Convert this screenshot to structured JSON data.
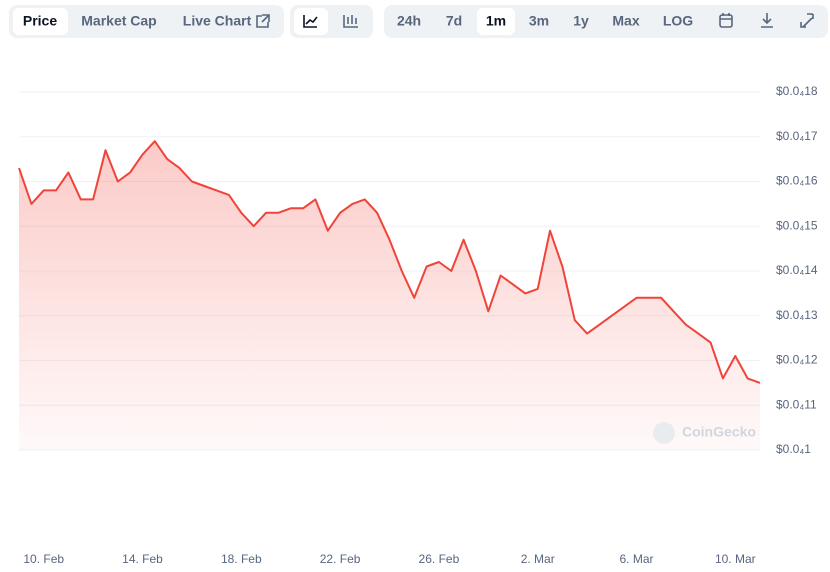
{
  "toolbar": {
    "tabs": [
      "Price",
      "Market Cap",
      "Live Chart"
    ],
    "ranges": [
      "24h",
      "7d",
      "1m",
      "3m",
      "1y",
      "Max",
      "LOG"
    ]
  },
  "chart_data": {
    "type": "line",
    "watermark": "CoinGecko",
    "color": "#f0443a",
    "grid": true,
    "categories": [
      null,
      null,
      "10. Feb",
      null,
      null,
      null,
      null,
      null,
      null,
      null,
      "14. Feb",
      null,
      null,
      null,
      null,
      null,
      null,
      null,
      "18. Feb",
      null,
      null,
      null,
      null,
      null,
      null,
      null,
      "22. Feb",
      null,
      null,
      null,
      null,
      null,
      null,
      null,
      "26. Feb",
      null,
      null,
      null,
      null,
      null,
      null,
      null,
      "2. Mar",
      null,
      null,
      null,
      null,
      null,
      null,
      null,
      "6. Mar",
      null,
      null,
      null,
      null,
      null,
      null,
      null,
      "10. Mar",
      null,
      null
    ],
    "values": [
      1.63e-05,
      1.55e-05,
      1.58e-05,
      1.58e-05,
      1.62e-05,
      1.56e-05,
      1.56e-05,
      1.67e-05,
      1.6e-05,
      1.62e-05,
      1.66e-05,
      1.69e-05,
      1.65e-05,
      1.63e-05,
      1.6e-05,
      1.59e-05,
      1.58e-05,
      1.57e-05,
      1.53e-05,
      1.5e-05,
      1.53e-05,
      1.53e-05,
      1.54e-05,
      1.54e-05,
      1.56e-05,
      1.49e-05,
      1.53e-05,
      1.55e-05,
      1.56e-05,
      1.53e-05,
      1.47e-05,
      1.4e-05,
      1.34e-05,
      1.41e-05,
      1.42e-05,
      1.4e-05,
      1.47e-05,
      1.4e-05,
      1.31e-05,
      1.39e-05,
      1.37e-05,
      1.35e-05,
      1.36e-05,
      1.49e-05,
      1.41e-05,
      1.29e-05,
      1.26e-05,
      1.28e-05,
      1.3e-05,
      1.32e-05,
      1.34e-05,
      1.34e-05,
      1.34e-05,
      1.31e-05,
      1.28e-05,
      1.26e-05,
      1.24e-05,
      1.16e-05,
      1.21e-05,
      1.16e-05,
      1.15e-05
    ],
    "ylim": [
      1e-05,
      1.89e-05
    ],
    "yticks": [
      {
        "value": 1e-05,
        "label": "$0.0₄1"
      },
      {
        "value": 1.1e-05,
        "label": "$0.0₄11"
      },
      {
        "value": 1.2e-05,
        "label": "$0.0₄12"
      },
      {
        "value": 1.3e-05,
        "label": "$0.0₄13"
      },
      {
        "value": 1.4e-05,
        "label": "$0.0₄14"
      },
      {
        "value": 1.5e-05,
        "label": "$0.0₄15"
      },
      {
        "value": 1.6e-05,
        "label": "$0.0₄16"
      },
      {
        "value": 1.7e-05,
        "label": "$0.0₄17"
      },
      {
        "value": 1.8e-05,
        "label": "$0.0₄18"
      }
    ]
  }
}
